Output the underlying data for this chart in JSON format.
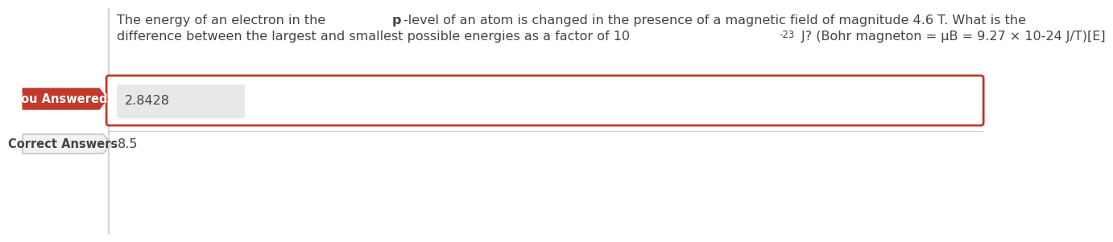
{
  "question_line1_pre": "The energy of an electron in the ",
  "question_line1_bold": "p",
  "question_line1_post": "-level of an atom is changed in the presence of a magnetic field of magnitude 4.6 T. What is the",
  "question_line2_pre": "difference between the largest and smallest possible energies as a factor of 10",
  "question_line2_sup": "-23",
  "question_line2_post": " J? (Bohr magneton = μB = 9.27 × 10-24 J/T)[E]",
  "you_answered_label": "You Answered",
  "you_answered_value": "2.8428",
  "correct_answers_label": "Correct Answers",
  "correct_answers_value": "8.5",
  "bg_color": "#ffffff",
  "label_bg_red": "#c0392b",
  "label_text_color": "#ffffff",
  "answer_box_border_color": "#c0392b",
  "answer_box_fill": "#ffffff",
  "input_box_fill": "#e8e8e8",
  "correct_label_bg": "#f2f2f2",
  "correct_label_border": "#bbbbbb",
  "text_color": "#444444",
  "vert_line_color": "#cccccc",
  "sep_line_color": "#cccccc",
  "font_size_question": 11.5,
  "font_size_label": 10.5,
  "font_size_value": 11.5
}
